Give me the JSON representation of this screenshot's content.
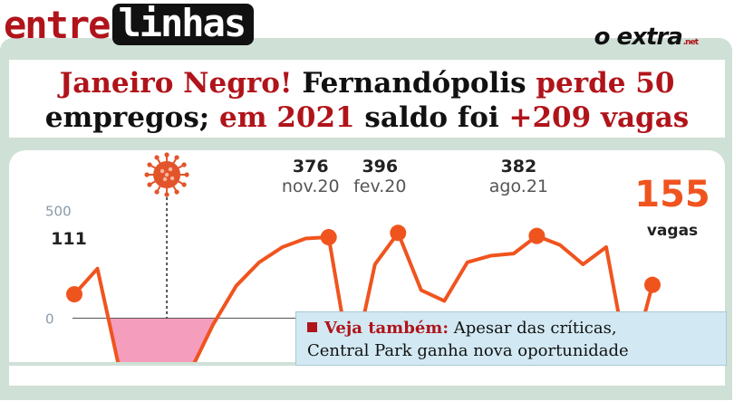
{
  "brand": {
    "word1": "entre",
    "word2": "linhas"
  },
  "logo": {
    "text": "o extra",
    "suffix": ".net"
  },
  "headline": {
    "line1": [
      {
        "text": "Janeiro Negro!",
        "accent": true
      },
      {
        "text": " Fernandópolis ",
        "accent": false
      },
      {
        "text": "perde 50",
        "accent": true
      }
    ],
    "line2": [
      {
        "text": "empregos; ",
        "accent": false
      },
      {
        "text": "em 2021",
        "accent": true
      },
      {
        "text": " saldo foi ",
        "accent": false
      },
      {
        "text": "+209 vagas",
        "accent": true
      }
    ]
  },
  "chart_data": {
    "type": "line",
    "y_ticks": [
      0,
      500
    ],
    "y_tick_labels": [
      "0",
      "500"
    ],
    "ylim": [
      -250,
      620
    ],
    "values": [
      111,
      230,
      -260,
      -280,
      -280,
      -250,
      -30,
      150,
      260,
      330,
      370,
      376,
      -250,
      250,
      396,
      130,
      80,
      260,
      290,
      300,
      382,
      340,
      250,
      330,
      -250,
      155
    ],
    "annotations": [
      {
        "index": 0,
        "value": "111",
        "label": ""
      },
      {
        "index": 11,
        "value": "376",
        "label": "nov.20"
      },
      {
        "index": 14,
        "value": "396",
        "label": "fev.20"
      },
      {
        "index": 20,
        "value": "382",
        "label": "ago.21"
      }
    ],
    "highlight": {
      "index": 25,
      "value": "155",
      "label": "vagas"
    },
    "line_color": "#f0541e",
    "negative_fill": "#f59dbd",
    "marker_index": 4,
    "marker_icon": "virus-icon"
  },
  "also": {
    "label": "Veja também:",
    "text_line1": " Apesar das críticas,",
    "text_line2": "Central Park ganha nova oportunidade"
  }
}
